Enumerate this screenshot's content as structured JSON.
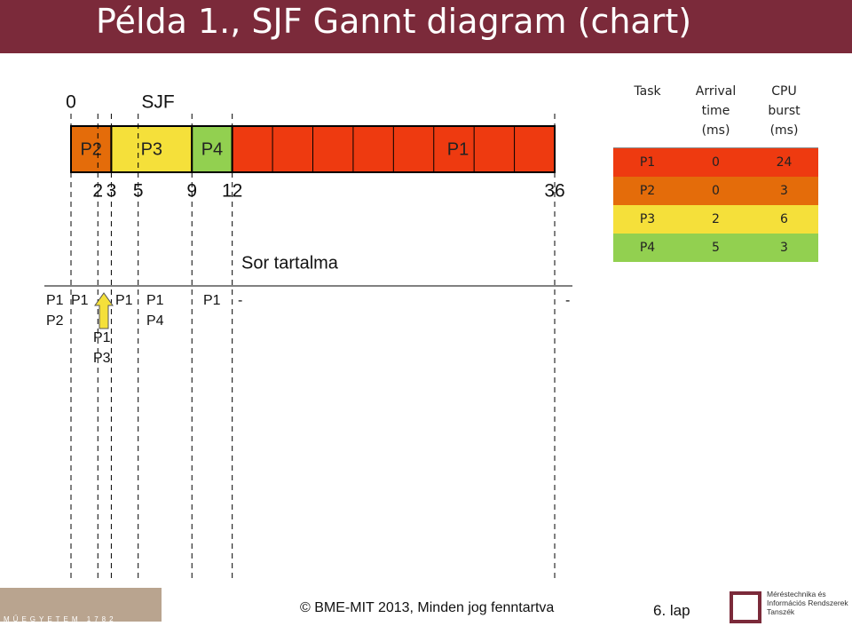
{
  "header": {
    "title": "Példa 1., SJF Gannt diagram (chart)"
  },
  "gantt": {
    "label": "SJF",
    "ticks": [
      0,
      2,
      3,
      5,
      9,
      12,
      36
    ],
    "segments": [
      {
        "label": "P2",
        "color": "#e46c0a"
      },
      {
        "label": "P3",
        "color": "#f5e03a"
      },
      {
        "label": "P4",
        "color": "#92d050"
      },
      {
        "label": "P1",
        "color": "#ee3a10"
      }
    ],
    "queue_title": "Sor tartalma",
    "queue": [
      [
        "P1",
        "P2"
      ],
      [
        "P1"
      ],
      [
        "P1",
        "P3"
      ],
      [
        "P1"
      ],
      [
        "P1",
        "P4"
      ],
      [
        "P1"
      ],
      [
        "-"
      ],
      [
        "-"
      ]
    ]
  },
  "table": {
    "header": [
      "Task",
      "Arrival time (ms)",
      "CPU burst (ms)"
    ],
    "rows": [
      [
        "P1",
        "0",
        "24"
      ],
      [
        "P2",
        "0",
        "3"
      ],
      [
        "P3",
        "2",
        "6"
      ],
      [
        "P4",
        "5",
        "3"
      ]
    ],
    "row_colors": [
      "#ee3a10",
      "#e46c0a",
      "#f5e03a",
      "#92d050"
    ]
  },
  "footer": {
    "copyright": "© BME-MIT 2013, Minden jog fenntartva",
    "page": "6. lap",
    "logo_text": "Méréstechnika és Információs Rendszerek Tanszék",
    "university": "MŰEGYETEM 1782"
  }
}
